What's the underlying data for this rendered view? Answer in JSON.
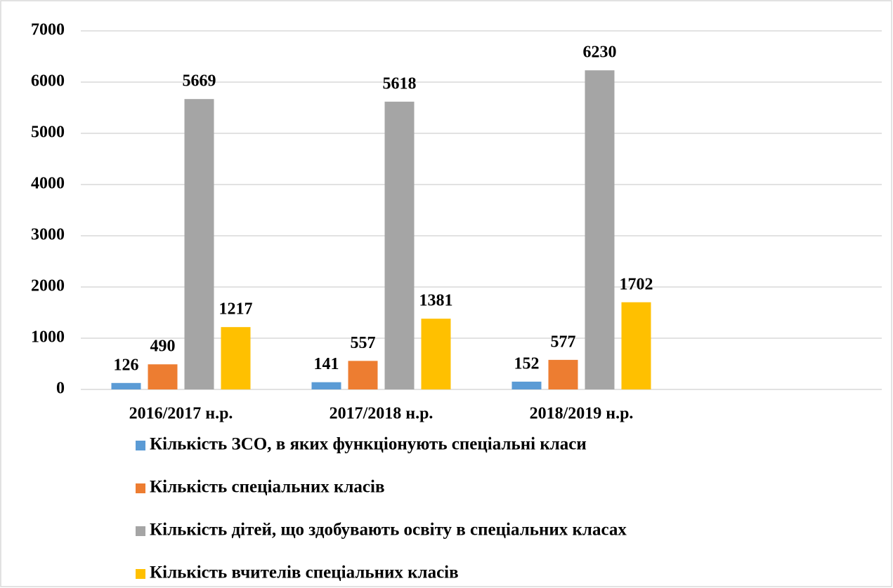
{
  "chart_data": {
    "type": "bar",
    "categories": [
      "2016/2017 н.р.",
      "2017/2018 н.р.",
      "2018/2019 н.р.",
      null
    ],
    "series": [
      {
        "name": "Кількість ЗСО, в яких функціонують  спеціальні класи",
        "color": "#5b9bd5",
        "values": [
          126,
          141,
          152,
          null
        ]
      },
      {
        "name": "Кількість спеціальних класів",
        "color": "#ed7d31",
        "values": [
          490,
          557,
          577,
          null
        ]
      },
      {
        "name": "Кількість дітей, що здобувають освіту в спеціальних класах",
        "color": "#a5a5a5",
        "values": [
          5669,
          5618,
          6230,
          null
        ]
      },
      {
        "name": "Кількість вчителів спеціальних класів",
        "color": "#ffc000",
        "values": [
          1217,
          1381,
          1702,
          null
        ]
      }
    ],
    "ylim": [
      0,
      7000
    ],
    "yticks": [
      0,
      1000,
      2000,
      3000,
      4000,
      5000,
      6000,
      7000
    ],
    "grid": true,
    "legend": "bottom"
  }
}
